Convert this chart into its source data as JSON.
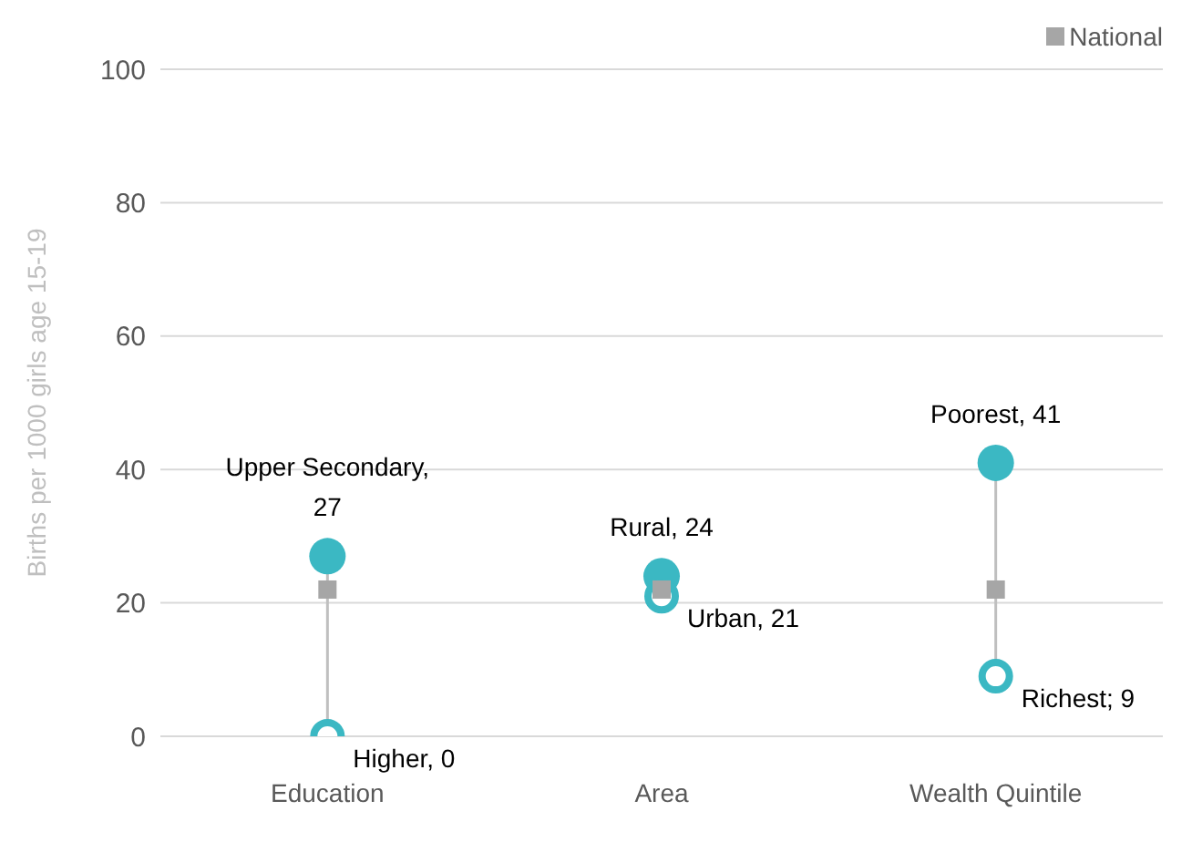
{
  "chart_data": {
    "type": "scatter",
    "ylabel": "Births per 1000 girls age 15-19",
    "categories": [
      "Education",
      "Area",
      "Wealth Quintile"
    ],
    "ylim": [
      0,
      100
    ],
    "yticks": [
      0,
      20,
      40,
      60,
      80,
      100
    ],
    "grid": "y",
    "legend": "top right",
    "marker": "circle",
    "series": [
      {
        "color": "#3bb8c3",
        "values": [
          27,
          24,
          41
        ],
        "value_labels": [
          "Upper Secondary, 27",
          "Rural, 24",
          "Poorest, 41"
        ]
      },
      {
        "color": "#3bb8c3",
        "values": [
          0,
          21,
          9
        ],
        "value_labels": [
          "Higher, 0",
          "Urban, 21",
          "Richest; 9"
        ]
      },
      {
        "name": "National",
        "type": "scatter",
        "marker": "square",
        "color": "#a6a6a6",
        "values": [
          22,
          22,
          22
        ]
      }
    ]
  }
}
